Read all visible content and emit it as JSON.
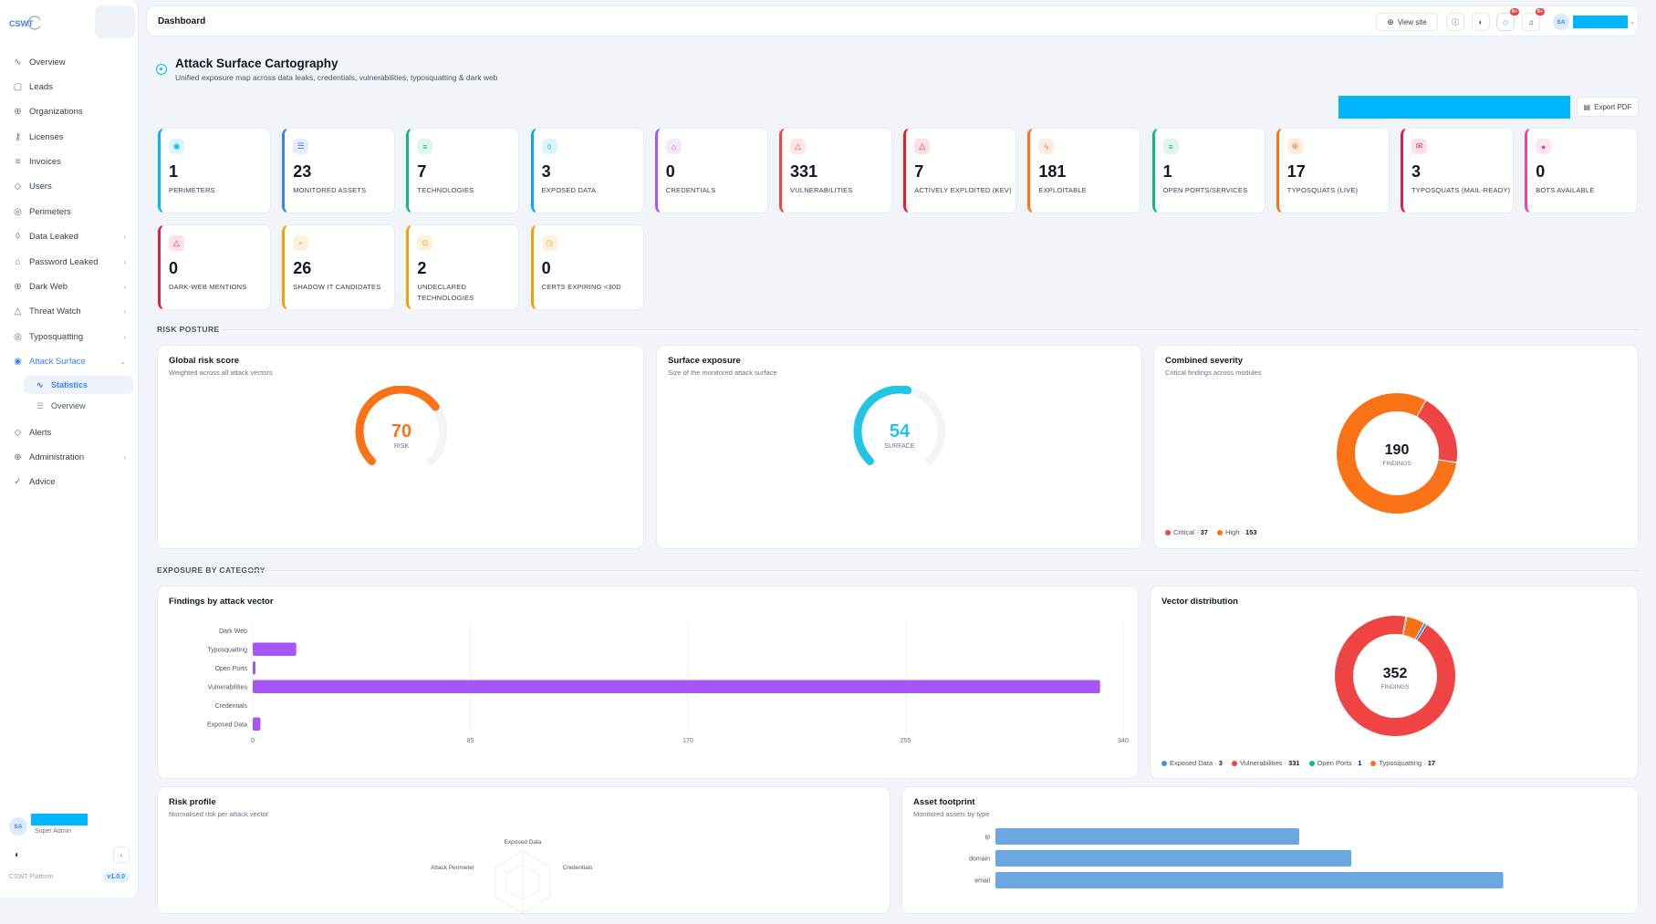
{
  "app": {
    "logo_text": "CSWT"
  },
  "sidebar": {
    "items": [
      {
        "label": "Overview",
        "icon": "activity-icon"
      },
      {
        "label": "Leads",
        "icon": "clipboard-icon"
      },
      {
        "label": "Organizations",
        "icon": "globe-icon"
      },
      {
        "label": "Licenses",
        "icon": "key-icon"
      },
      {
        "label": "Invoices",
        "icon": "database-icon"
      },
      {
        "label": "Users",
        "icon": "shield-icon"
      },
      {
        "label": "Perimeters",
        "icon": "target-icon"
      },
      {
        "label": "Data Leaked",
        "icon": "droplet-icon"
      },
      {
        "label": "Password Leaked",
        "icon": "lock-icon"
      },
      {
        "label": "Dark Web",
        "icon": "globe-icon"
      },
      {
        "label": "Threat Watch",
        "icon": "alert-icon"
      },
      {
        "label": "Typosquatting",
        "icon": "target-icon"
      },
      {
        "label": "Attack Surface",
        "icon": "radar-icon"
      }
    ],
    "sub_items": [
      {
        "label": "Statistics"
      },
      {
        "label": "Overview"
      }
    ],
    "items_after": [
      {
        "label": "Alerts",
        "icon": "shield-icon"
      },
      {
        "label": "Administration",
        "icon": "globe-icon"
      },
      {
        "label": "Advice",
        "icon": "check-circle-icon"
      }
    ],
    "user": {
      "initials": "SA",
      "role": "Super Admin"
    },
    "footer": {
      "platform": "CSWT Platform",
      "version": "v1.0.0"
    }
  },
  "topbar": {
    "title": "Dashboard",
    "view_site": "View site",
    "badge1": "9+",
    "badge2": "9+",
    "user_initials": "SA"
  },
  "page": {
    "title": "Attack Surface Cartography",
    "subtitle": "Unified exposure map across data leaks, credentials, vulnerabilities, typosquatting & dark web",
    "export_label": "Export PDF"
  },
  "stats": [
    {
      "value": "1",
      "label": "PERIMETERS",
      "color": "#00b7ff",
      "icon": "radar-icon"
    },
    {
      "value": "23",
      "label": "MONITORED ASSETS",
      "color": "#3b82f6",
      "icon": "list-icon"
    },
    {
      "value": "7",
      "label": "TECHNOLOGIES",
      "color": "#10b981",
      "icon": "database-icon"
    },
    {
      "value": "3",
      "label": "EXPOSED DATA",
      "color": "#0ea5e9",
      "icon": "droplet-icon"
    },
    {
      "value": "0",
      "label": "CREDENTIALS",
      "color": "#a855f7",
      "icon": "lock-icon"
    },
    {
      "value": "331",
      "label": "VULNERABILITIES",
      "color": "#ef4444",
      "icon": "alert-icon"
    },
    {
      "value": "7",
      "label": "ACTIVELY EXPLOITED (KEV)",
      "color": "#dc2626",
      "icon": "alert-icon"
    },
    {
      "value": "181",
      "label": "EXPLOITABLE",
      "color": "#f97316",
      "icon": "zap-icon"
    },
    {
      "value": "1",
      "label": "OPEN PORTS/SERVICES",
      "color": "#10b981",
      "icon": "server-icon"
    },
    {
      "value": "17",
      "label": "TYPOSQUATS (LIVE)",
      "color": "#f97316",
      "icon": "globe-icon"
    },
    {
      "value": "3",
      "label": "TYPOSQUATS (MAIL-READY)",
      "color": "#e11d48",
      "icon": "mail-icon"
    },
    {
      "value": "0",
      "label": "BOTS AVAILABLE",
      "color": "#ec4899",
      "icon": "bot-icon"
    },
    {
      "value": "0",
      "label": "DARK-WEB MENTIONS",
      "color": "#e11d48",
      "icon": "alert-icon"
    },
    {
      "value": "26",
      "label": "SHADOW IT CANDIDATES",
      "color": "#f59e0b",
      "icon": "search-icon"
    },
    {
      "value": "2",
      "label": "UNDECLARED TECHNOLOGIES",
      "color": "#f59e0b",
      "icon": "chip-icon"
    },
    {
      "value": "0",
      "label": "CERTS EXPIRING <30D",
      "color": "#f59e0b",
      "icon": "clock-icon"
    }
  ],
  "sections": {
    "risk_posture": "RISK POSTURE",
    "exposure": "EXPOSURE BY CATEGORY"
  },
  "risk_cards": {
    "global": {
      "title": "Global risk score",
      "subtitle": "Weighted across all attack vectors",
      "value": "70",
      "unit": "RISK",
      "fraction": 0.7,
      "color": "#f97316"
    },
    "surface": {
      "title": "Surface exposure",
      "subtitle": "Size of the monitored attack surface",
      "value": "54",
      "unit": "SURFACE",
      "fraction": 0.54,
      "color": "#22c5e6"
    },
    "severity": {
      "title": "Combined severity",
      "subtitle": "Critical findings across modules",
      "total": "190",
      "unit": "FINDINGS",
      "legend": [
        {
          "label": "Critical",
          "value": "37",
          "color": "#ef4444"
        },
        {
          "label": "High",
          "value": "153",
          "color": "#f97316"
        }
      ]
    }
  },
  "chart_data": [
    {
      "type": "bar",
      "title": "Findings by attack vector",
      "orientation": "horizontal",
      "categories": [
        "Dark Web",
        "Typosquatting",
        "Open Ports",
        "Vulnerabilities",
        "Credentials",
        "Exposed Data"
      ],
      "values": [
        0,
        17,
        1,
        331,
        0,
        3
      ],
      "xlim": [
        0,
        340
      ],
      "ticks": [
        "0",
        "85",
        "170",
        "255",
        "340"
      ],
      "color": "#a855f7"
    },
    {
      "type": "pie",
      "title": "Vector distribution",
      "total": "352",
      "unit": "FINDINGS",
      "slices": [
        {
          "label": "Exposed Data",
          "value": 3,
          "color": "#4a90e2"
        },
        {
          "label": "Vulnerabilities",
          "value": 331,
          "color": "#ef4444"
        },
        {
          "label": "Open Ports",
          "value": 1,
          "color": "#10b981"
        },
        {
          "label": "Typosquatting",
          "value": 17,
          "color": "#f97316"
        }
      ]
    },
    {
      "type": "bar",
      "title": "Asset footprint",
      "subtitle": "Monitored assets by type",
      "orientation": "horizontal",
      "categories": [
        "ip",
        "domain",
        "email"
      ],
      "values": [
        7,
        8.2,
        11.7
      ],
      "xlim": [
        0,
        14
      ],
      "color": "#6aa6e0"
    }
  ],
  "risk_profile": {
    "title": "Risk profile",
    "subtitle": "Normalised risk per attack vector",
    "labels": [
      "Exposed Data",
      "Attack Perimeter",
      "Credentials"
    ]
  },
  "severity_chart": {
    "slices": [
      {
        "label": "Critical",
        "value": 37,
        "color": "#ef4444"
      },
      {
        "label": "High",
        "value": 153,
        "color": "#f97316"
      }
    ]
  }
}
